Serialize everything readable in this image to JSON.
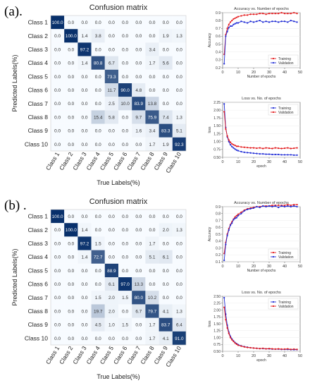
{
  "figure": {
    "panels": [
      {
        "label": "(a).",
        "cm_title": "Confusion matrix",
        "acc_title": "Accuracy vs. Number of epochs",
        "loss_title": "Loss vs. No. of epochs"
      },
      {
        "label": "(b) .",
        "cm_title": "Confusion matrix",
        "acc_title": "Accuracy vs. Number of epochs",
        "loss_title": "Loss vs. No. of epochs"
      }
    ]
  },
  "colors": {
    "cm_dark": "#08306b",
    "cm_light": "#f7fbff",
    "training": "#e41a1c",
    "validation": "#1f2bd6"
  },
  "chart_data": [
    {
      "type": "heatmap",
      "panel": "(a)",
      "title": "Confusion matrix",
      "xlabel": "True Labels(%)",
      "ylabel": "Predicted Labels(%)",
      "categories": [
        "Class 1",
        "Class 2",
        "Class 3",
        "Class 4",
        "Class 5",
        "Class 6",
        "Class 7",
        "Class 8",
        "Class 9",
        "Class 10"
      ],
      "matrix": [
        [
          "100.0",
          "0.0",
          "0.0",
          "0.0",
          "0.0",
          "0.0",
          "0.0",
          "0.0",
          "0.0",
          "0.0"
        ],
        [
          "0.0",
          "100.0",
          "1.4",
          "3.8",
          "0.0",
          "0.0",
          "0.0",
          "0.0",
          "1.9",
          "1.3"
        ],
        [
          "0.0",
          "0.0",
          "97.2",
          "0.0",
          "0.0",
          "0.0",
          "0.0",
          "3.4",
          "0.0",
          "0.0"
        ],
        [
          "0.0",
          "0.0",
          "1.4",
          "80.8",
          "6.7",
          "0.0",
          "0.0",
          "1.7",
          "5.6",
          "0.0"
        ],
        [
          "0.0",
          "0.0",
          "0.0",
          "0.0",
          "73.3",
          "0.0",
          "0.0",
          "0.0",
          "0.0",
          "0.0"
        ],
        [
          "0.0",
          "0.0",
          "0.0",
          "0.0",
          "11.7",
          "90.0",
          "4.8",
          "0.0",
          "0.0",
          "0.0"
        ],
        [
          "0.0",
          "0.0",
          "0.0",
          "0.0",
          "2.5",
          "10.0",
          "83.9",
          "13.8",
          "0.0",
          "0.0"
        ],
        [
          "0.0",
          "0.0",
          "0.0",
          "15.4",
          "5.8",
          "0.0",
          "9.7",
          "75.9",
          "7.4",
          "1.3"
        ],
        [
          "0.0",
          "0.0",
          "0.0",
          "0.0",
          "0.0",
          "0.0",
          "1.6",
          "3.4",
          "83.3",
          "5.1"
        ],
        [
          "0.0",
          "0.0",
          "0.0",
          "0.0",
          "0.0",
          "0.0",
          "0.0",
          "1.7",
          "1.9",
          "92.3"
        ]
      ]
    },
    {
      "type": "line",
      "panel": "(a)",
      "title": "Accuracy vs. Number of epochs",
      "xlabel": "Number of epochs",
      "ylabel": "Accuracy",
      "xlim": [
        0,
        50
      ],
      "ylim": [
        0.2,
        0.9
      ],
      "xticks": [
        0,
        10,
        20,
        30,
        40,
        50
      ],
      "yticks": [
        0.2,
        0.3,
        0.4,
        0.5,
        0.6,
        0.7,
        0.8,
        0.9
      ],
      "legend": "bottom-right",
      "series": [
        {
          "name": "Training",
          "color": "#e41a1c",
          "x": [
            1,
            2,
            3,
            4,
            5,
            6,
            7,
            8,
            9,
            10,
            12,
            14,
            16,
            18,
            20,
            22,
            24,
            26,
            28,
            30,
            32,
            34,
            36,
            38,
            40,
            42,
            44,
            46,
            48
          ],
          "values": [
            0.37,
            0.62,
            0.7,
            0.75,
            0.78,
            0.8,
            0.82,
            0.83,
            0.84,
            0.85,
            0.86,
            0.87,
            0.87,
            0.88,
            0.88,
            0.88,
            0.89,
            0.89,
            0.88,
            0.89,
            0.89,
            0.89,
            0.89,
            0.9,
            0.89,
            0.89,
            0.89,
            0.9,
            0.89
          ]
        },
        {
          "name": "Validation",
          "color": "#1f2bd6",
          "x": [
            1,
            2,
            3,
            4,
            5,
            6,
            7,
            8,
            9,
            10,
            12,
            14,
            16,
            18,
            20,
            22,
            24,
            26,
            28,
            30,
            32,
            34,
            36,
            38,
            40,
            42,
            44,
            46,
            48
          ],
          "values": [
            0.25,
            0.6,
            0.66,
            0.71,
            0.73,
            0.73,
            0.75,
            0.76,
            0.77,
            0.77,
            0.79,
            0.78,
            0.77,
            0.79,
            0.78,
            0.79,
            0.8,
            0.78,
            0.79,
            0.78,
            0.79,
            0.79,
            0.78,
            0.79,
            0.79,
            0.78,
            0.8,
            0.79,
            0.78
          ]
        }
      ]
    },
    {
      "type": "line",
      "panel": "(a)",
      "title": "Loss vs. No. of epochs",
      "xlabel": "epoch",
      "ylabel": "loss",
      "xlim": [
        0,
        50
      ],
      "ylim": [
        0.5,
        2.25
      ],
      "xticks": [
        0,
        10,
        20,
        30,
        40,
        50
      ],
      "yticks": [
        0.5,
        0.75,
        1.0,
        1.25,
        1.5,
        1.75,
        2.0,
        2.25
      ],
      "legend": "top-right",
      "series": [
        {
          "name": "Training",
          "color": "#1f2bd6",
          "x": [
            1,
            2,
            3,
            4,
            5,
            6,
            7,
            8,
            9,
            10,
            12,
            14,
            16,
            18,
            20,
            22,
            24,
            26,
            28,
            30,
            32,
            34,
            36,
            38,
            40,
            42,
            44,
            46,
            48
          ],
          "values": [
            2.2,
            1.45,
            1.15,
            1.0,
            0.9,
            0.84,
            0.8,
            0.76,
            0.73,
            0.71,
            0.68,
            0.66,
            0.65,
            0.64,
            0.63,
            0.62,
            0.61,
            0.61,
            0.6,
            0.6,
            0.59,
            0.59,
            0.59,
            0.58,
            0.58,
            0.58,
            0.58,
            0.57,
            0.57
          ]
        },
        {
          "name": "Validation",
          "color": "#e41a1c",
          "x": [
            1,
            2,
            3,
            4,
            5,
            6,
            7,
            8,
            9,
            10,
            12,
            14,
            16,
            18,
            20,
            22,
            24,
            26,
            28,
            30,
            32,
            34,
            36,
            38,
            40,
            42,
            44,
            46,
            48
          ],
          "values": [
            1.95,
            1.4,
            1.18,
            1.05,
            0.98,
            0.93,
            0.9,
            0.88,
            0.85,
            0.85,
            0.83,
            0.82,
            0.81,
            0.8,
            0.8,
            0.79,
            0.8,
            0.78,
            0.8,
            0.79,
            0.78,
            0.8,
            0.79,
            0.78,
            0.79,
            0.8,
            0.78,
            0.79,
            0.8
          ]
        }
      ]
    },
    {
      "type": "heatmap",
      "panel": "(b)",
      "title": "Confusion matrix",
      "xlabel": "True Labels(%)",
      "ylabel": "Predicted Labels(%)",
      "categories": [
        "Class 1",
        "Class 2",
        "Class 3",
        "Class 4",
        "Class 5",
        "Class 6",
        "Class 7",
        "Class 8",
        "Class 9",
        "Class 10"
      ],
      "matrix": [
        [
          "100.0",
          "0.0",
          "0.0",
          "0.0",
          "0.0",
          "0.0",
          "0.0",
          "0.0",
          "0.0",
          "0.0"
        ],
        [
          "0.0",
          "100.0",
          "1.4",
          "0.0",
          "0.0",
          "0.0",
          "0.0",
          "0.0",
          "2.0",
          "1.3"
        ],
        [
          "0.0",
          "0.0",
          "97.2",
          "1.5",
          "0.0",
          "0.0",
          "0.0",
          "1.7",
          "0.0",
          "0.0"
        ],
        [
          "0.0",
          "0.0",
          "1.4",
          "72.7",
          "0.0",
          "0.0",
          "0.0",
          "5.1",
          "6.1",
          "0.0"
        ],
        [
          "0.0",
          "0.0",
          "0.0",
          "0.0",
          "88.9",
          "0.0",
          "0.0",
          "0.0",
          "0.0",
          "0.0"
        ],
        [
          "0.0",
          "0.0",
          "0.0",
          "0.0",
          "6.1",
          "97.0",
          "13.3",
          "0.0",
          "0.0",
          "0.0"
        ],
        [
          "0.0",
          "0.0",
          "0.0",
          "1.5",
          "2.0",
          "1.5",
          "80.0",
          "10.2",
          "0.0",
          "0.0"
        ],
        [
          "0.0",
          "0.0",
          "0.0",
          "19.7",
          "2.0",
          "0.0",
          "6.7",
          "79.7",
          "4.1",
          "1.3"
        ],
        [
          "0.0",
          "0.0",
          "0.0",
          "4.5",
          "1.0",
          "1.5",
          "0.0",
          "1.7",
          "83.7",
          "6.4"
        ],
        [
          "0.0",
          "0.0",
          "0.0",
          "0.0",
          "0.0",
          "0.0",
          "0.0",
          "1.7",
          "4.1",
          "91.0"
        ]
      ]
    },
    {
      "type": "line",
      "panel": "(b)",
      "title": "Accuracy vs. Number of epochs",
      "xlabel": "Number of epochs",
      "ylabel": "Accuracy",
      "xlim": [
        0,
        50
      ],
      "ylim": [
        0.1,
        0.9
      ],
      "xticks": [
        0,
        10,
        20,
        30,
        40,
        50
      ],
      "yticks": [
        0.1,
        0.2,
        0.3,
        0.4,
        0.5,
        0.6,
        0.7,
        0.8,
        0.9
      ],
      "legend": "bottom-right",
      "series": [
        {
          "name": "Training",
          "color": "#e41a1c",
          "x": [
            1,
            2,
            3,
            4,
            5,
            6,
            7,
            8,
            9,
            10,
            12,
            14,
            16,
            18,
            20,
            22,
            24,
            26,
            28,
            30,
            32,
            34,
            36,
            38,
            40,
            42,
            44,
            46,
            48
          ],
          "values": [
            0.22,
            0.38,
            0.5,
            0.58,
            0.64,
            0.68,
            0.72,
            0.75,
            0.77,
            0.79,
            0.82,
            0.85,
            0.87,
            0.88,
            0.89,
            0.9,
            0.9,
            0.91,
            0.91,
            0.91,
            0.92,
            0.92,
            0.92,
            0.92,
            0.92,
            0.93,
            0.92,
            0.93,
            0.93
          ]
        },
        {
          "name": "Validation",
          "color": "#1f2bd6",
          "x": [
            1,
            2,
            3,
            4,
            5,
            6,
            7,
            8,
            9,
            10,
            12,
            14,
            16,
            18,
            20,
            22,
            24,
            26,
            28,
            30,
            32,
            34,
            36,
            38,
            40,
            42,
            44,
            46,
            48
          ],
          "values": [
            0.12,
            0.35,
            0.48,
            0.56,
            0.63,
            0.66,
            0.71,
            0.73,
            0.74,
            0.77,
            0.8,
            0.84,
            0.86,
            0.87,
            0.88,
            0.9,
            0.89,
            0.91,
            0.9,
            0.91,
            0.9,
            0.91,
            0.89,
            0.91,
            0.9,
            0.91,
            0.9,
            0.91,
            0.9
          ]
        }
      ]
    },
    {
      "type": "line",
      "panel": "(b)",
      "title": "Loss vs. No. of epochs",
      "xlabel": "epoch",
      "ylabel": "loss",
      "xlim": [
        0,
        50
      ],
      "ylim": [
        0.5,
        2.5
      ],
      "xticks": [
        0,
        10,
        20,
        30,
        40,
        50
      ],
      "yticks": [
        0.5,
        0.75,
        1.0,
        1.25,
        1.5,
        1.75,
        2.0,
        2.25,
        2.5
      ],
      "legend": "top-right",
      "series": [
        {
          "name": "Training",
          "color": "#1f2bd6",
          "x": [
            1,
            2,
            3,
            4,
            5,
            6,
            7,
            8,
            9,
            10,
            12,
            14,
            16,
            18,
            20,
            22,
            24,
            26,
            28,
            30,
            32,
            34,
            36,
            38,
            40,
            42,
            44,
            46,
            48
          ],
          "values": [
            2.45,
            1.85,
            1.45,
            1.2,
            1.05,
            0.95,
            0.88,
            0.82,
            0.78,
            0.74,
            0.7,
            0.67,
            0.65,
            0.63,
            0.62,
            0.61,
            0.6,
            0.6,
            0.59,
            0.59,
            0.58,
            0.58,
            0.58,
            0.57,
            0.57,
            0.57,
            0.56,
            0.56,
            0.56
          ]
        },
        {
          "name": "Validation",
          "color": "#e41a1c",
          "x": [
            1,
            2,
            3,
            4,
            5,
            6,
            7,
            8,
            9,
            10,
            12,
            14,
            16,
            18,
            20,
            22,
            24,
            26,
            28,
            30,
            32,
            34,
            36,
            38,
            40,
            42,
            44,
            46,
            48
          ],
          "values": [
            2.1,
            1.65,
            1.35,
            1.15,
            1.0,
            0.92,
            0.86,
            0.8,
            0.76,
            0.72,
            0.69,
            0.66,
            0.64,
            0.63,
            0.62,
            0.61,
            0.6,
            0.61,
            0.59,
            0.6,
            0.59,
            0.58,
            0.59,
            0.58,
            0.58,
            0.59,
            0.57,
            0.58,
            0.57
          ]
        }
      ]
    }
  ]
}
